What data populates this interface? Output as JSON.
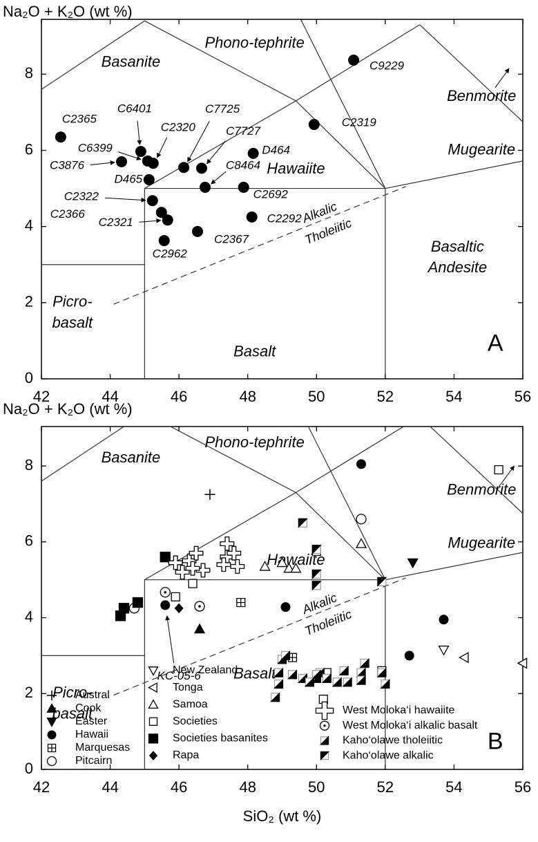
{
  "chart_data": [
    {
      "type": "scatter",
      "y_label": "Na₂O + K₂O (wt %)",
      "xlim": [
        42,
        56
      ],
      "ylim": [
        0,
        9.44
      ],
      "xticks": [
        42,
        44,
        46,
        48,
        50,
        52,
        54,
        56
      ],
      "yticks": [
        0,
        2,
        4,
        6,
        8
      ],
      "panel_label": "A",
      "field_labels": [
        "Basanite",
        "Phono-tephrite",
        "Benmorite",
        "Mugearite",
        "Hawaiite",
        "Basaltic",
        "Andesite",
        "Picro-",
        "basalt",
        "Basalt",
        "Alkalic",
        "Tholeiitic"
      ],
      "series": [
        {
          "marker": "circle",
          "color": "#000000",
          "point_labels": [
            "C9229",
            "C2319",
            "C2365",
            "C6401",
            "C6399",
            "C3876",
            "C2320",
            "D465",
            "C7725",
            "C7727",
            "C8464",
            "D464",
            "C2692",
            "C2322",
            "C2366",
            "C2321",
            "C2962",
            "C2367",
            "C2292"
          ],
          "x": [
            51.08,
            49.93,
            42.56,
            44.89,
            45.09,
            44.33,
            45.25,
            45.13,
            46.14,
            46.66,
            46.76,
            48.16,
            47.88,
            45.23,
            45.49,
            45.67,
            45.57,
            46.54,
            48.12
          ],
          "values": [
            8.37,
            6.68,
            6.35,
            5.97,
            5.72,
            5.7,
            5.66,
            5.23,
            5.55,
            5.53,
            5.03,
            5.92,
            5.03,
            4.68,
            4.37,
            4.17,
            3.63,
            3.87,
            4.25
          ]
        }
      ]
    },
    {
      "type": "scatter",
      "y_label": "Na₂O + K₂O (wt %)",
      "x_label": "SiO₂ (wt %)",
      "xlim": [
        42,
        56
      ],
      "ylim": [
        0,
        9.04
      ],
      "xticks": [
        42,
        44,
        46,
        48,
        50,
        52,
        54,
        56
      ],
      "yticks": [
        0,
        2,
        4,
        6,
        8
      ],
      "panel_label": "B",
      "annotation": "KC-05-6",
      "field_labels": [
        "Basanite",
        "Phono-tephrite",
        "Benmorite",
        "Mugearite",
        "Hawaiite",
        "Picro-",
        "basalt",
        "Basalt",
        "Alkalic",
        "Tholeiitic"
      ],
      "series": [
        {
          "name": "Austral",
          "marker": "plus",
          "color": "#000000",
          "x": [
            46.9
          ],
          "values": [
            7.25
          ]
        },
        {
          "name": "Cook",
          "marker": "triangle-up",
          "color": "#000000",
          "x": [
            46.6
          ],
          "values": [
            3.7
          ]
        },
        {
          "name": "Easter",
          "marker": "triangle-down",
          "color": "#000000",
          "x": [
            52.8
          ],
          "values": [
            5.45
          ]
        },
        {
          "name": "Hawaii",
          "marker": "circle",
          "color": "#000000",
          "x": [
            51.3,
            45.6,
            49.1,
            53.7,
            52.7
          ],
          "values": [
            8.05,
            4.33,
            4.28,
            3.95,
            3.0
          ]
        },
        {
          "name": "Marquesas",
          "marker": "square-plus",
          "color": "#000000",
          "x": [
            47.8,
            49.3
          ],
          "values": [
            4.4,
            2.95
          ]
        },
        {
          "name": "Pitcairn",
          "marker": "circle-open",
          "color": "#000000",
          "x": [
            51.3,
            44.7
          ],
          "values": [
            6.6,
            4.25
          ]
        },
        {
          "name": "New Zealand",
          "marker": "triangle-down-open",
          "color": "#000000",
          "x": [
            53.7
          ],
          "values": [
            3.15
          ]
        },
        {
          "name": "Tonga",
          "marker": "triangle-left-open",
          "color": "#000000",
          "x": [
            54.3,
            56.0
          ],
          "values": [
            2.95,
            2.8
          ]
        },
        {
          "name": "Samoa",
          "marker": "triangle-up-open",
          "color": "#000000",
          "x": [
            48.5,
            49.0,
            49.2,
            49.4,
            51.3
          ],
          "values": [
            5.35,
            5.45,
            5.3,
            5.3,
            5.95
          ]
        },
        {
          "name": "Societies",
          "marker": "square-open",
          "color": "#000000",
          "x": [
            55.3,
            45.9,
            46.4,
            50.0,
            51.9,
            50.2,
            50.3
          ],
          "values": [
            7.9,
            4.55,
            4.9,
            5.75,
            2.6,
            1.85,
            2.55
          ]
        },
        {
          "name": "Societies basanites",
          "marker": "square",
          "color": "#000000",
          "x": [
            44.3,
            44.4,
            44.8,
            45.6
          ],
          "values": [
            4.05,
            4.25,
            4.4,
            5.6
          ]
        },
        {
          "name": "Rapa",
          "marker": "diamond",
          "color": "#000000",
          "x": [
            46.0
          ],
          "values": [
            4.25
          ]
        },
        {
          "name": "West Moloka‘i hawaiite",
          "marker": "cross-open",
          "color": "#000000",
          "x": [
            45.9,
            46.1,
            46.3,
            46.5,
            46.7,
            46.4,
            47.4,
            47.4,
            47.6,
            47.3,
            47.7
          ],
          "values": [
            5.45,
            5.2,
            5.5,
            5.7,
            5.25,
            5.3,
            5.95,
            5.6,
            5.7,
            5.4,
            5.35
          ]
        },
        {
          "name": "West Moloka‘i alkalic basalt",
          "marker": "circle-dot",
          "color": "#000000",
          "x": [
            45.6,
            46.6
          ],
          "values": [
            4.67,
            4.3
          ]
        },
        {
          "name": "Kaho‘olawe tholeiitic",
          "marker": "half-square-lower",
          "color": "#000000",
          "x": [
            49.0,
            49.1,
            48.9,
            48.9,
            48.8,
            49.3,
            49.6,
            50.0,
            50.1,
            50.3,
            50.6,
            50.8,
            50.9,
            51.3,
            51.3,
            51.4,
            51.9,
            52.0,
            50.0,
            49.8
          ],
          "values": [
            2.9,
            3.0,
            2.55,
            2.25,
            1.9,
            2.5,
            2.4,
            2.4,
            2.55,
            2.4,
            2.3,
            2.6,
            2.3,
            2.55,
            2.35,
            2.8,
            2.55,
            2.25,
            2.5,
            2.3
          ]
        },
        {
          "name": "Kaho‘olawe alkalic",
          "marker": "half-square-upper",
          "color": "#000000",
          "x": [
            49.6,
            50.0,
            50.0,
            50.0,
            51.9
          ],
          "values": [
            6.5,
            5.8,
            5.15,
            4.85,
            4.95
          ]
        }
      ]
    }
  ]
}
